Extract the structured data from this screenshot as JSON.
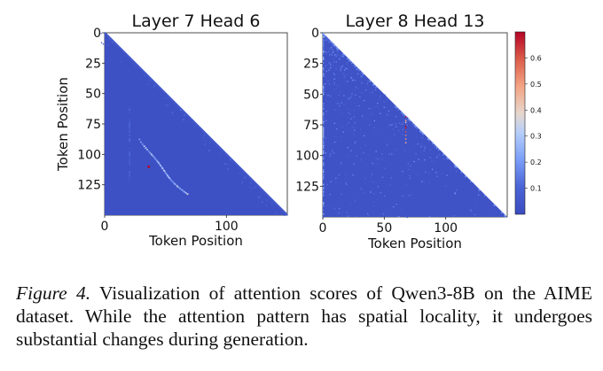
{
  "chart_data": [
    {
      "type": "heatmap",
      "title": "Layer 7 Head 6",
      "xlabel": "Token Position",
      "ylabel": "Token Position",
      "xticks": [
        "0",
        "100"
      ],
      "yticks": [
        "0",
        "25",
        "50",
        "75",
        "100",
        "125"
      ],
      "xlim": [
        0,
        150
      ],
      "ylim": [
        150,
        0
      ],
      "mask": "causal (lower-triangular)",
      "background_value": 0.02,
      "features": [
        {
          "kind": "diagonal band",
          "value": 0.05
        },
        {
          "kind": "curved streak",
          "from": [
            28,
            87
          ],
          "to": [
            68,
            132
          ],
          "value": 0.3
        },
        {
          "kind": "column streak",
          "x": 20,
          "range": [
            60,
            120
          ],
          "value": 0.12
        },
        {
          "kind": "hotspot",
          "x": 36,
          "y": 110,
          "value": 0.7
        }
      ]
    },
    {
      "type": "heatmap",
      "title": "Layer 8 Head 13",
      "xlabel": "Token Position",
      "ylabel": "",
      "xticks": [
        "0",
        "50",
        "100"
      ],
      "yticks": [
        "0",
        "25",
        "50",
        "75",
        "100",
        "125"
      ],
      "xlim": [
        0,
        150
      ],
      "ylim": [
        150,
        0
      ],
      "mask": "causal (lower-triangular)",
      "background_value": 0.03,
      "features": [
        {
          "kind": "scattered speckles",
          "value": 0.15
        },
        {
          "kind": "column streak",
          "x": 67,
          "range": [
            68,
            90
          ],
          "value": 0.7
        },
        {
          "kind": "column streak",
          "x": 0,
          "range": [
            0,
            150
          ],
          "value": 0.25
        }
      ]
    }
  ],
  "colorbar": {
    "colormap": "coolwarm",
    "range": [
      0,
      0.7
    ],
    "ticks": [
      "0.1",
      "0.2",
      "0.3",
      "0.4",
      "0.5",
      "0.6"
    ]
  },
  "caption": {
    "label": "Figure 4.",
    "text": "Visualization of attention scores of Qwen3-8B on the AIME dataset. While the attention pattern has spatial locality, it undergoes substantial changes during generation."
  }
}
